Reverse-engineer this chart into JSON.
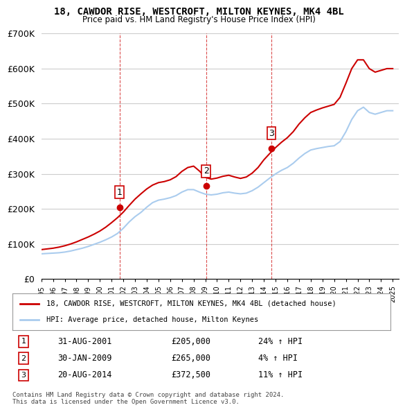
{
  "title": "18, CAWDOR RISE, WESTCROFT, MILTON KEYNES, MK4 4BL",
  "subtitle": "Price paid vs. HM Land Registry's House Price Index (HPI)",
  "xlabel": "",
  "ylabel": "",
  "ylim": [
    0,
    700000
  ],
  "yticks": [
    0,
    100000,
    200000,
    300000,
    400000,
    500000,
    600000,
    700000
  ],
  "ytick_labels": [
    "£0",
    "£100K",
    "£200K",
    "£300K",
    "£400K",
    "£500K",
    "£600K",
    "£700K"
  ],
  "background_color": "#ffffff",
  "grid_color": "#cccccc",
  "sale_color": "#cc0000",
  "hpi_color": "#aaccee",
  "transactions": [
    {
      "label": "1",
      "date_str": "31-AUG-2001",
      "price": 205000,
      "pct": "24%",
      "x": 2001.67
    },
    {
      "label": "2",
      "date_str": "30-JAN-2009",
      "price": 265000,
      "pct": "4%",
      "x": 2009.08
    },
    {
      "label": "3",
      "date_str": "20-AUG-2014",
      "price": 372500,
      "pct": "11%",
      "x": 2014.64
    }
  ],
  "legend_line1": "18, CAWDOR RISE, WESTCROFT, MILTON KEYNES, MK4 4BL (detached house)",
  "legend_line2": "HPI: Average price, detached house, Milton Keynes",
  "footnote": "Contains HM Land Registry data © Crown copyright and database right 2024.\nThis data is licensed under the Open Government Licence v3.0.",
  "hpi_data": {
    "x": [
      1995,
      1995.5,
      1996,
      1996.5,
      1997,
      1997.5,
      1998,
      1998.5,
      1999,
      1999.5,
      2000,
      2000.5,
      2001,
      2001.5,
      2002,
      2002.5,
      2003,
      2003.5,
      2004,
      2004.5,
      2005,
      2005.5,
      2006,
      2006.5,
      2007,
      2007.5,
      2008,
      2008.5,
      2009,
      2009.5,
      2010,
      2010.5,
      2011,
      2011.5,
      2012,
      2012.5,
      2013,
      2013.5,
      2014,
      2014.5,
      2015,
      2015.5,
      2016,
      2016.5,
      2017,
      2017.5,
      2018,
      2018.5,
      2019,
      2019.5,
      2020,
      2020.5,
      2021,
      2021.5,
      2022,
      2022.5,
      2023,
      2023.5,
      2024,
      2024.5,
      2025
    ],
    "y": [
      72000,
      73000,
      74000,
      75000,
      77000,
      80000,
      84000,
      88000,
      93000,
      99000,
      105000,
      112000,
      120000,
      130000,
      145000,
      163000,
      178000,
      190000,
      205000,
      218000,
      225000,
      228000,
      232000,
      238000,
      248000,
      255000,
      255000,
      248000,
      242000,
      240000,
      242000,
      246000,
      248000,
      245000,
      243000,
      245000,
      252000,
      262000,
      275000,
      288000,
      300000,
      310000,
      318000,
      330000,
      345000,
      358000,
      368000,
      372000,
      375000,
      378000,
      380000,
      392000,
      420000,
      455000,
      480000,
      490000,
      475000,
      470000,
      475000,
      480000,
      480000
    ]
  },
  "price_data": {
    "x": [
      1995,
      1995.5,
      1996,
      1996.5,
      1997,
      1997.5,
      1998,
      1998.5,
      1999,
      1999.5,
      2000,
      2000.5,
      2001,
      2001.5,
      2002,
      2002.5,
      2003,
      2003.5,
      2004,
      2004.5,
      2005,
      2005.5,
      2006,
      2006.5,
      2007,
      2007.5,
      2008,
      2008.5,
      2009,
      2009.5,
      2010,
      2010.5,
      2011,
      2011.5,
      2012,
      2012.5,
      2013,
      2013.5,
      2014,
      2014.5,
      2015,
      2015.5,
      2016,
      2016.5,
      2017,
      2017.5,
      2018,
      2018.5,
      2019,
      2019.5,
      2020,
      2020.5,
      2021,
      2021.5,
      2022,
      2022.5,
      2023,
      2023.5,
      2024,
      2024.5,
      2025
    ],
    "y": [
      84000,
      86000,
      88000,
      91000,
      95000,
      100000,
      106000,
      113000,
      120000,
      128000,
      137000,
      148000,
      161000,
      175000,
      191000,
      210000,
      228000,
      243000,
      257000,
      268000,
      275000,
      278000,
      283000,
      292000,
      307000,
      318000,
      322000,
      308000,
      290000,
      285000,
      288000,
      293000,
      296000,
      291000,
      287000,
      291000,
      302000,
      318000,
      340000,
      358000,
      375000,
      390000,
      403000,
      420000,
      442000,
      460000,
      475000,
      482000,
      488000,
      493000,
      498000,
      518000,
      558000,
      600000,
      625000,
      625000,
      600000,
      590000,
      595000,
      600000,
      600000
    ]
  }
}
